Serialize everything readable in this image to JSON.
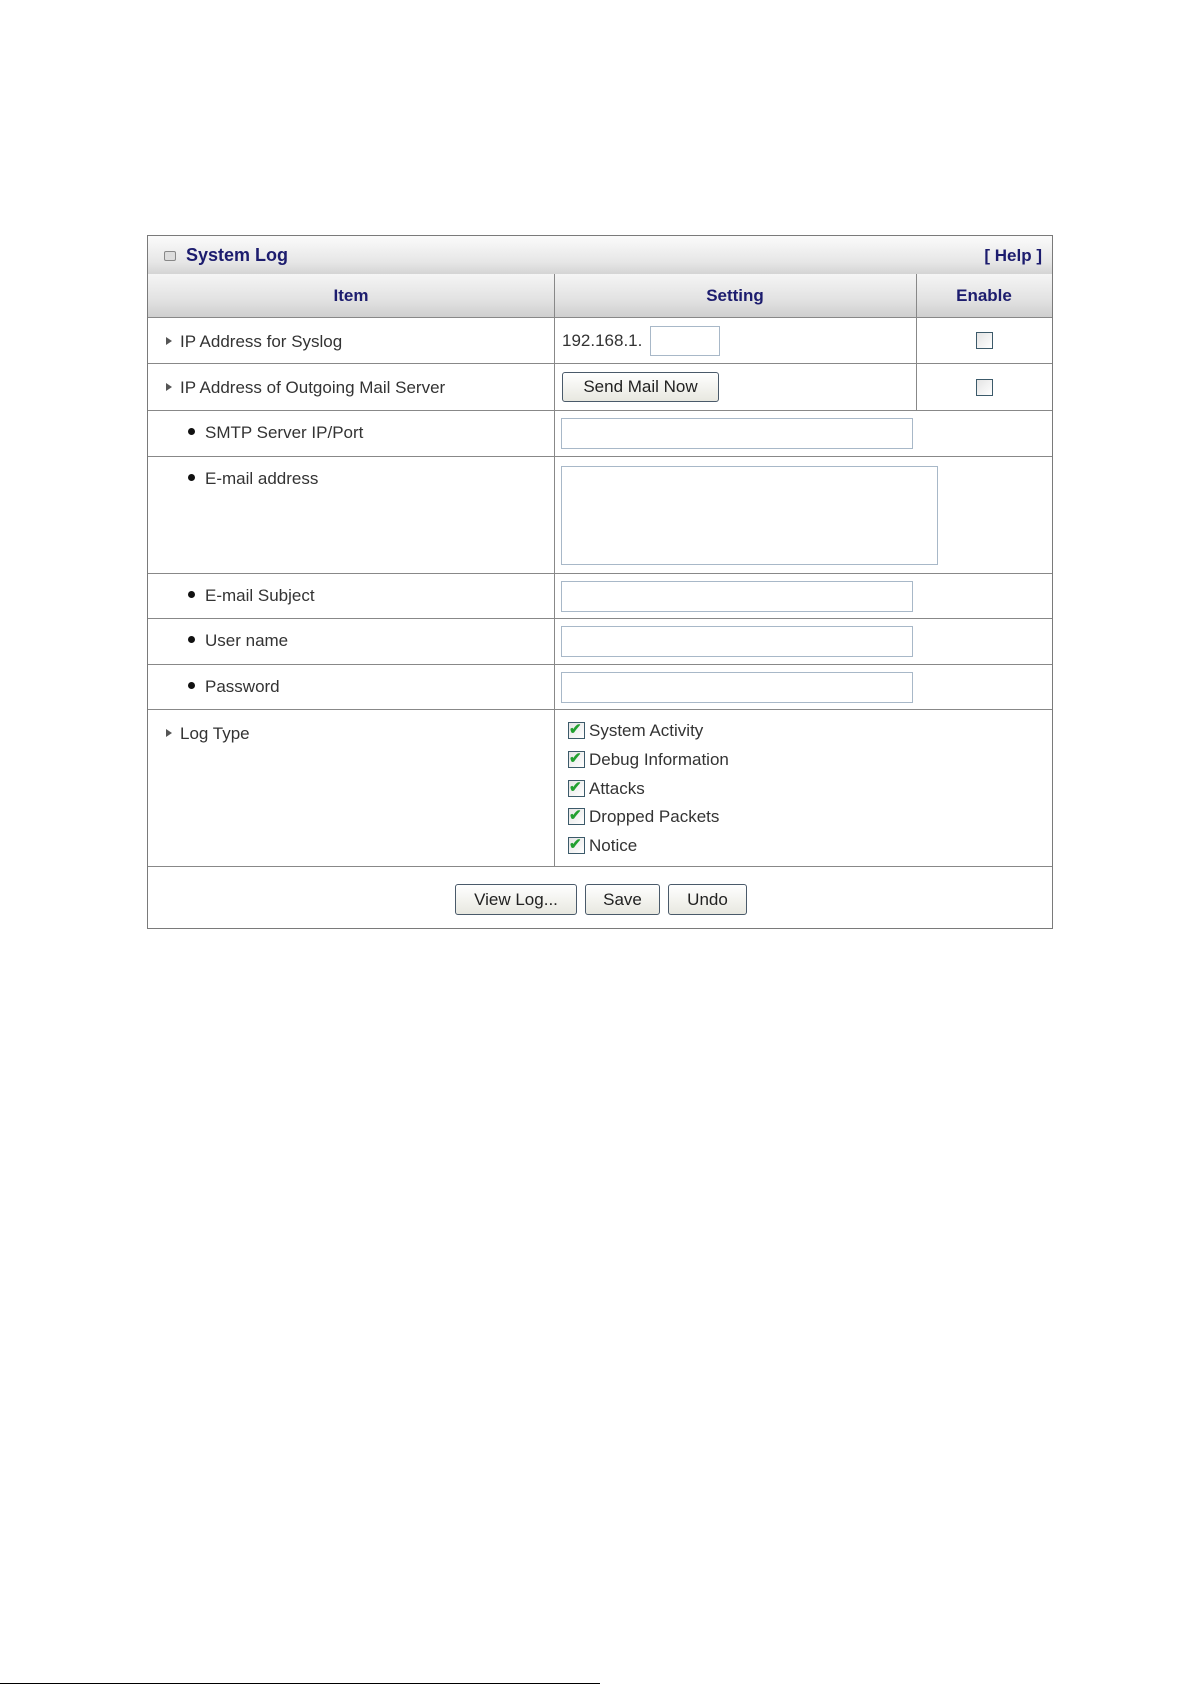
{
  "panel": {
    "title": "System Log",
    "help": "[ Help ]",
    "icon": "window-icon"
  },
  "columns": {
    "item": "Item",
    "setting": "Setting",
    "enable": "Enable"
  },
  "rows": {
    "syslog": {
      "label": "IP Address for Syslog",
      "prefix": "192.168.1.",
      "value": "",
      "enabled": false
    },
    "mail": {
      "label": "IP Address of Outgoing Mail Server",
      "button": "Send Mail Now",
      "enabled": false
    },
    "smtp": {
      "label": "SMTP Server IP/Port",
      "value": ""
    },
    "email": {
      "label": "E-mail address",
      "value": ""
    },
    "subject": {
      "label": "E-mail Subject",
      "value": ""
    },
    "user": {
      "label": "User name",
      "value": ""
    },
    "password": {
      "label": "Password",
      "value": ""
    },
    "logtype": {
      "label": "Log Type",
      "options": [
        {
          "label": "System Activity",
          "checked": true
        },
        {
          "label": "Debug Information",
          "checked": true
        },
        {
          "label": "Attacks",
          "checked": true
        },
        {
          "label": "Dropped Packets",
          "checked": true
        },
        {
          "label": "Notice",
          "checked": true
        }
      ]
    }
  },
  "buttons": {
    "view_log": "View Log...",
    "save": "Save",
    "undo": "Undo"
  },
  "colors": {
    "heading": "#1c1c6e",
    "check": "#22a030"
  }
}
